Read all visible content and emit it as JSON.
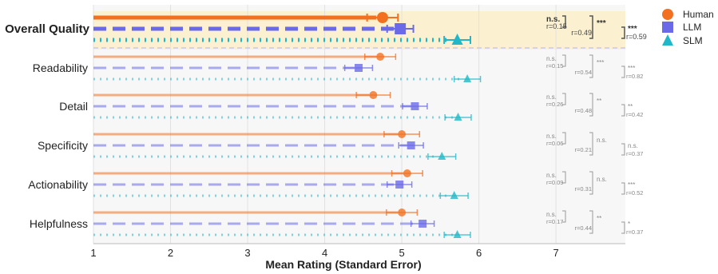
{
  "chart_data": {
    "type": "dot-errorbar",
    "xlabel": "Mean Rating (Standard Error)",
    "xlim": [
      1,
      7.9
    ],
    "xticks": [
      1,
      2,
      3,
      4,
      5,
      6,
      7
    ],
    "grid": true,
    "legend_position": "top-right",
    "series": [
      {
        "name": "Human",
        "color": "#f37021",
        "marker": "circle"
      },
      {
        "name": "LLM",
        "color": "#6a6ae8",
        "marker": "square"
      },
      {
        "name": "SLM",
        "color": "#20b8c8",
        "marker": "triangle"
      }
    ],
    "categories": [
      "Overall Quality",
      "Readability",
      "Detail",
      "Specificity",
      "Actionability",
      "Helpfulness"
    ],
    "highlight_category": "Overall Quality",
    "values": {
      "Human": [
        4.75,
        4.72,
        4.63,
        5.0,
        5.07,
        5.0
      ],
      "LLM": [
        4.98,
        4.44,
        5.17,
        5.12,
        4.97,
        5.27
      ],
      "SLM": [
        5.72,
        5.85,
        5.73,
        5.52,
        5.68,
        5.72
      ]
    },
    "errors": {
      "Human": [
        0.2,
        0.2,
        0.22,
        0.23,
        0.2,
        0.2
      ],
      "LLM": [
        0.17,
        0.18,
        0.16,
        0.16,
        0.16,
        0.15
      ],
      "SLM": [
        0.17,
        0.17,
        0.17,
        0.18,
        0.18,
        0.17
      ]
    },
    "annotations": [
      {
        "a_sig": "n.s.",
        "a_r": "r=0.15",
        "b_sig": "***",
        "b_r": "r=0.49",
        "c_sig": "***",
        "c_r": "r=0.59"
      },
      {
        "a_sig": "n.s.",
        "a_r": "r=0.15",
        "b_sig": "***",
        "b_r": "r=0.54",
        "c_sig": "***",
        "c_r": "r=0.82"
      },
      {
        "a_sig": "n.s.",
        "a_r": "r=0.26",
        "b_sig": "**",
        "b_r": "r=0.48",
        "c_sig": "**",
        "c_r": "r=0.42"
      },
      {
        "a_sig": "n.s.",
        "a_r": "r=0.06",
        "b_sig": "n.s.",
        "b_r": "r=0.21",
        "c_sig": "n.s.",
        "c_r": "r=0.37"
      },
      {
        "a_sig": "n.s.",
        "a_r": "r=0.09",
        "b_sig": "n.s.",
        "b_r": "r=0.31",
        "c_sig": "***",
        "c_r": "r=0.52"
      },
      {
        "a_sig": "n.s.",
        "a_r": "r=0.17",
        "b_sig": "**",
        "b_r": "r=0.44",
        "c_sig": "*",
        "c_r": "r=0.37"
      }
    ],
    "highlight_color": "#fbf0cf"
  }
}
